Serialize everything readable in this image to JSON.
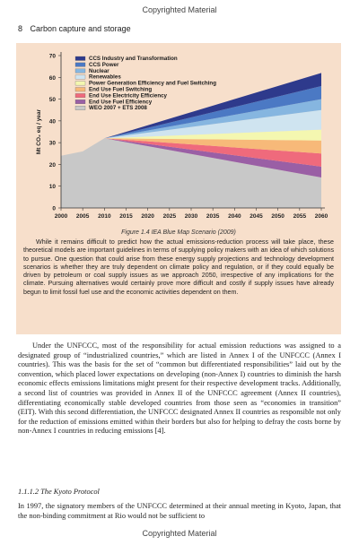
{
  "watermark_top": "Copyrighted Material",
  "watermark_bottom": "Copyrighted Material",
  "page_header": {
    "page_number": "8",
    "running_title": "Carbon capture and storage"
  },
  "figure": {
    "caption": "Figure 1.4  IEA Blue Map Scenario (2009)",
    "colors": {
      "box_bg": "#f7dfcb",
      "ccs_industry": "#2e3a8c",
      "ccs_power": "#4b79c4",
      "nuclear": "#86b6e0",
      "renewables": "#cfe4f0",
      "power_eff": "#f4f7b0",
      "fuel_switch": "#f7b979",
      "elec_eff": "#ef6a7c",
      "fuel_eff": "#9a5fa5",
      "baseline": "#c8c8c8"
    }
  },
  "chart_data": {
    "type": "area",
    "ylabel": "Mt CO₂ eq / year",
    "ylim": [
      0,
      70
    ],
    "yticks": [
      0,
      10,
      20,
      30,
      40,
      50,
      60,
      70
    ],
    "x": [
      2000,
      2005,
      2010,
      2015,
      2020,
      2025,
      2030,
      2035,
      2040,
      2045,
      2050,
      2055,
      2060
    ],
    "xticks": [
      "2000",
      "2005",
      "2010",
      "2015",
      "2020",
      "2025",
      "2030",
      "2035",
      "2040",
      "2045",
      "2050",
      "2055",
      "2060"
    ],
    "grid": false,
    "legend_position": "top-left",
    "legend": [
      "CCS Industry and Transformation",
      "CCS Power",
      "Nuclear",
      "Renewables",
      "Power Generation Efficiency and Fuel Switching",
      "End Use Fuel Switching",
      "End Use Electricity Efficiency",
      "End Use Fuel Efficiency",
      "WEO 2007 + ETS 2008"
    ],
    "boundaries": [
      {
        "x": 2000,
        "y": 24
      },
      {
        "x": 2005,
        "y": 26
      },
      {
        "x": 2010,
        "y": 32
      },
      {
        "x": 2060,
        "lower": 14,
        "upper": 62
      }
    ],
    "bands_2060": [
      {
        "name": "WEO 2007 + ETS 2008",
        "bottom": 0,
        "top": 14
      },
      {
        "name": "End Use Fuel Efficiency",
        "bottom": 14,
        "top": 19
      },
      {
        "name": "End Use Electricity Efficiency",
        "bottom": 19,
        "top": 25
      },
      {
        "name": "End Use Fuel Switching",
        "bottom": 25,
        "top": 31
      },
      {
        "name": "Power Generation Efficiency and Fuel Switching",
        "bottom": 31,
        "top": 36
      },
      {
        "name": "Renewables",
        "bottom": 36,
        "top": 45
      },
      {
        "name": "Nuclear",
        "bottom": 45,
        "top": 50
      },
      {
        "name": "CCS Power",
        "bottom": 50,
        "top": 56
      },
      {
        "name": "CCS Industry and Transformation",
        "bottom": 56,
        "top": 62
      }
    ]
  },
  "box_text": "While it remains difficult to predict how the actual emissions-reduction process will take place, these theoretical models are important guidelines in terms of supplying policy makers with an idea of which solutions to pursue. One question that could arise from these energy supply projections and technology development scenarios is whether they are truly dependent on climate policy and regulation, or if they could equally be driven by petroleum or coal supply issues as we approach 2050, irrespective of any implications for the climate. Pursuing alternatives would certainly prove more difficult and costly if supply issues have already begun to limit fossil fuel use and the economic activities dependent on them.",
  "body_paragraph_1": "Under the UNFCCC, most of the responsibility for actual emission reductions was assigned to a designated group of “industrialized countries,” which are listed in Annex I of the UNFCCC (Annex I countries). This was the basis for the set of “common but differentiated responsibilities” laid out by the convention, which placed lower expectations on developing (non-Annex I) countries to diminish the harsh economic effects emissions limitations might present for their respective development tracks. Additionally, a second list of countries was provided in Annex II of the UNFCCC agreement (Annex II countries), differentiating economically stable developed countries from those seen as “economies in transition” (EIT). With this second differentiation, the UNFCCC designated Annex II countries as responsible not only for the reduction of emissions emitted within their borders but also for helping to defray the costs borne by non-Annex I countries in reducing emissions [4].",
  "subsection_heading": "1.1.1.2 The Kyoto Protocol",
  "body_paragraph_2": "In 1997, the signatory members of the UNFCCC determined at their annual meeting in Kyoto, Japan, that the non-binding commitment at Rio would not be sufficient to"
}
